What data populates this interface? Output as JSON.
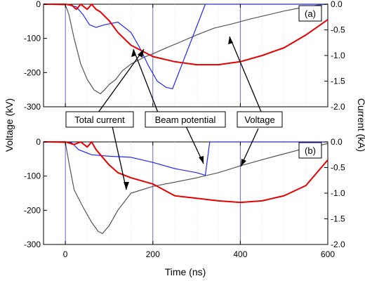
{
  "chart_data": {
    "type": "line",
    "xlabel": "Time (ns)",
    "ylabel_left": "Voltage (kV)",
    "ylabel_right": "Current (kA)",
    "xlim": [
      -50,
      600
    ],
    "x_ticks": [
      "0",
      "200",
      "400",
      "600"
    ],
    "ylim_left": [
      -300,
      0
    ],
    "ylim_right": [
      -2.0,
      0.0
    ],
    "y_ticks_left": [
      "0",
      "-100",
      "-200",
      "-300"
    ],
    "y_ticks_right": [
      "0.0",
      "-0.5",
      "-1.0",
      "-1.5",
      "-2.0"
    ],
    "colors": {
      "total_current": "#e60000",
      "beam_potential": "#2424ff",
      "voltage": "#555555",
      "markers": "#6666cc"
    },
    "vertical_markers_ns": [
      0,
      200,
      400
    ],
    "callouts": {
      "total_current": "Total current",
      "beam_potential": "Beam potential",
      "voltage": "Voltage"
    },
    "panels": [
      {
        "label": "(a)",
        "series": [
          {
            "key": "voltage",
            "axis": "left",
            "x": [
              -50,
              0,
              8,
              20,
              35,
              50,
              65,
              80,
              90,
              100,
              115,
              130,
              150,
              180,
              200,
              230,
              260,
              300,
              340,
              380,
              420,
              460,
              500,
              540,
              580,
              600
            ],
            "y": [
              0,
              -2,
              -30,
              -100,
              -175,
              -220,
              -250,
              -262,
              -250,
              -235,
              -220,
              -195,
              -175,
              -155,
              -145,
              -128,
              -112,
              -90,
              -70,
              -58,
              -44,
              -32,
              -20,
              -10,
              -2,
              0
            ]
          },
          {
            "key": "total_current",
            "axis": "right",
            "x": [
              -50,
              0,
              15,
              25,
              35,
              50,
              60,
              70,
              80,
              100,
              120,
              150,
              200,
              250,
              300,
              350,
              400,
              450,
              500,
              550,
              600
            ],
            "y": [
              0.0,
              0.0,
              -0.02,
              -0.1,
              0.0,
              -0.1,
              0.0,
              -0.1,
              -0.15,
              -0.32,
              -0.55,
              -0.8,
              -1.02,
              -1.12,
              -1.18,
              -1.18,
              -1.12,
              -1.0,
              -0.85,
              -0.6,
              -0.3
            ]
          },
          {
            "key": "beam_potential",
            "axis": "right",
            "x": [
              -50,
              0,
              25,
              40,
              55,
              70,
              90,
              120,
              150,
              170,
              190,
              210,
              230,
              245,
              320,
              400,
              500,
              600
            ],
            "y": [
              0.0,
              0.0,
              -0.05,
              -0.2,
              -0.4,
              -0.45,
              -0.4,
              -0.35,
              -0.55,
              -0.85,
              -1.2,
              -1.5,
              -1.62,
              -1.65,
              0.0,
              0.0,
              0.0,
              0.0
            ]
          }
        ]
      },
      {
        "label": "(b)",
        "series": [
          {
            "key": "voltage",
            "axis": "left",
            "x": [
              -50,
              0,
              8,
              20,
              40,
              60,
              75,
              85,
              100,
              120,
              150,
              200,
              250,
              300,
              350,
              400,
              450,
              500,
              550,
              600
            ],
            "y": [
              0,
              -2,
              -60,
              -140,
              -190,
              -235,
              -262,
              -268,
              -245,
              -200,
              -150,
              -130,
              -118,
              -105,
              -90,
              -70,
              -52,
              -35,
              -18,
              -5
            ]
          },
          {
            "key": "total_current",
            "axis": "right",
            "x": [
              -50,
              0,
              20,
              35,
              50,
              60,
              70,
              80,
              100,
              120,
              150,
              200,
              250,
              300,
              350,
              400,
              450,
              500,
              550,
              600
            ],
            "y": [
              0.0,
              0.0,
              -0.05,
              0.0,
              -0.1,
              0.0,
              -0.15,
              -0.25,
              -0.45,
              -0.6,
              -0.7,
              -0.82,
              -1.05,
              -1.1,
              -1.15,
              -1.18,
              -1.15,
              -1.05,
              -0.85,
              -0.35
            ]
          },
          {
            "key": "beam_potential",
            "axis": "right",
            "x": [
              -50,
              0,
              15,
              30,
              60,
              100,
              150,
              200,
              250,
              300,
              320,
              330,
              400,
              500,
              600
            ],
            "y": [
              0.0,
              0.0,
              -0.02,
              -0.15,
              -0.25,
              -0.28,
              -0.3,
              -0.4,
              -0.52,
              -0.6,
              -0.65,
              0.0,
              0.0,
              0.0,
              0.0
            ]
          }
        ]
      }
    ]
  }
}
